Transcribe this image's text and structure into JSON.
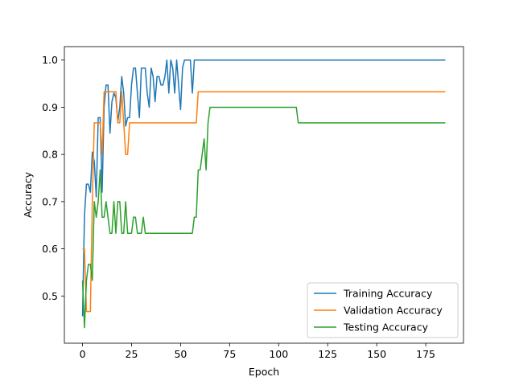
{
  "chart_data": {
    "type": "line",
    "title": "",
    "xlabel": "Epoch",
    "ylabel": "Accuracy",
    "xlim": [
      -9.25,
      194.25
    ],
    "ylim": [
      0.4,
      1.0285
    ],
    "xticks": [
      0,
      25,
      50,
      75,
      100,
      125,
      150,
      175
    ],
    "xtick_labels": [
      "0",
      "25",
      "50",
      "75",
      "100",
      "125",
      "150",
      "175"
    ],
    "yticks": [
      0.5,
      0.6,
      0.7,
      0.8,
      0.9,
      1.0
    ],
    "ytick_labels": [
      "0.5",
      "0.6",
      "0.7",
      "0.8",
      "0.9",
      "1.0"
    ],
    "grid": false,
    "legend_position": "lower-right",
    "series": [
      {
        "name": "Training Accuracy",
        "color": "#1f77b4",
        "x": [
          0,
          1,
          2,
          3,
          4,
          5,
          6,
          7,
          8,
          9,
          10,
          11,
          12,
          13,
          14,
          15,
          16,
          17,
          18,
          19,
          20,
          21,
          22,
          23,
          24,
          25,
          26,
          27,
          28,
          29,
          30,
          31,
          32,
          33,
          34,
          35,
          36,
          37,
          38,
          39,
          40,
          41,
          42,
          43,
          44,
          45,
          46,
          47,
          48,
          49,
          50,
          51,
          52,
          53,
          54,
          55,
          56,
          57,
          58,
          185
        ],
        "y": [
          0.457,
          0.67,
          0.737,
          0.737,
          0.72,
          0.805,
          0.785,
          0.71,
          0.878,
          0.878,
          0.72,
          0.9,
          0.947,
          0.947,
          0.845,
          0.912,
          0.93,
          0.92,
          0.87,
          0.9,
          0.965,
          0.93,
          0.86,
          0.878,
          0.878,
          0.948,
          0.983,
          0.983,
          0.93,
          0.878,
          0.983,
          0.983,
          0.983,
          0.93,
          0.9,
          0.983,
          0.965,
          0.912,
          0.965,
          0.965,
          0.947,
          0.947,
          0.965,
          1.0,
          0.93,
          1.0,
          0.983,
          0.93,
          1.0,
          0.947,
          0.895,
          0.983,
          1.0,
          1.0,
          1.0,
          1.0,
          0.93,
          1.0,
          1.0,
          1.0
        ]
      },
      {
        "name": "Validation Accuracy",
        "color": "#ff7f0e",
        "x": [
          0,
          1,
          2,
          3,
          4,
          5,
          6,
          7,
          8,
          9,
          10,
          11,
          12,
          13,
          14,
          15,
          16,
          17,
          18,
          19,
          20,
          21,
          22,
          23,
          24,
          25,
          26,
          27,
          28,
          29,
          30,
          40,
          50,
          58,
          59,
          60,
          185
        ],
        "y": [
          0.6,
          0.6,
          0.467,
          0.467,
          0.467,
          0.7,
          0.867,
          0.867,
          0.867,
          0.867,
          0.8,
          0.933,
          0.933,
          0.933,
          0.933,
          0.933,
          0.933,
          0.933,
          0.867,
          0.867,
          0.933,
          0.867,
          0.8,
          0.8,
          0.867,
          0.867,
          0.867,
          0.867,
          0.867,
          0.867,
          0.867,
          0.867,
          0.867,
          0.867,
          0.933,
          0.933,
          0.933
        ]
      },
      {
        "name": "Testing Accuracy",
        "color": "#2ca02c",
        "x": [
          0,
          1,
          2,
          3,
          4,
          5,
          6,
          7,
          8,
          9,
          10,
          11,
          12,
          13,
          14,
          15,
          16,
          17,
          18,
          19,
          20,
          21,
          22,
          23,
          24,
          25,
          26,
          27,
          28,
          29,
          30,
          31,
          32,
          33,
          34,
          35,
          40,
          45,
          50,
          55,
          56,
          57,
          58,
          59,
          60,
          61,
          62,
          63,
          64,
          65,
          66,
          70,
          80,
          90,
          100,
          108,
          109,
          110,
          120,
          185
        ],
        "y": [
          0.533,
          0.433,
          0.533,
          0.567,
          0.567,
          0.533,
          0.7,
          0.667,
          0.7,
          0.767,
          0.667,
          0.667,
          0.7,
          0.667,
          0.633,
          0.633,
          0.7,
          0.633,
          0.7,
          0.7,
          0.633,
          0.633,
          0.7,
          0.633,
          0.633,
          0.633,
          0.667,
          0.667,
          0.633,
          0.633,
          0.633,
          0.667,
          0.633,
          0.633,
          0.633,
          0.633,
          0.633,
          0.633,
          0.633,
          0.633,
          0.633,
          0.667,
          0.667,
          0.767,
          0.767,
          0.8,
          0.833,
          0.767,
          0.867,
          0.9,
          0.9,
          0.9,
          0.9,
          0.9,
          0.9,
          0.9,
          0.9,
          0.867,
          0.867,
          0.867
        ]
      }
    ]
  }
}
